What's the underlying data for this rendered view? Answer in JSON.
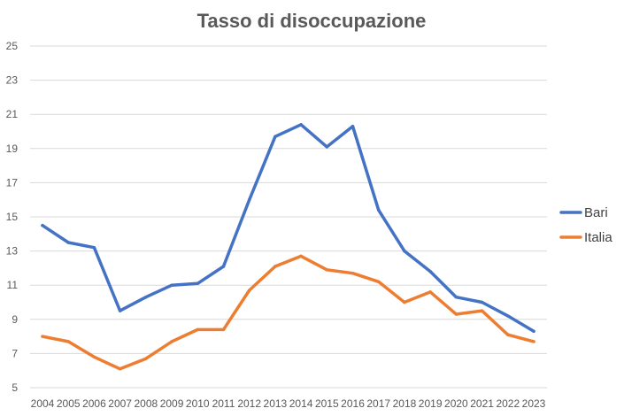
{
  "chart_data": {
    "type": "line",
    "title": "Tasso di disoccupazione",
    "xlabel": "",
    "ylabel": "",
    "categories": [
      "2004",
      "2005",
      "2006",
      "2007",
      "2008",
      "2009",
      "2010",
      "2011",
      "2012",
      "2013",
      "2014",
      "2015",
      "2016",
      "2017",
      "2018",
      "2019",
      "2020",
      "2021",
      "2022",
      "2023"
    ],
    "y_ticks": [
      "5",
      "7",
      "9",
      "11",
      "13",
      "15",
      "17",
      "19",
      "21",
      "23",
      "25"
    ],
    "ylim": [
      5,
      25
    ],
    "grid": true,
    "legend_position": "right",
    "series": [
      {
        "name": "Bari",
        "color": "#4472c4",
        "values": [
          14.5,
          13.5,
          13.2,
          9.5,
          10.3,
          11.0,
          11.1,
          12.1,
          16.0,
          19.7,
          20.4,
          19.1,
          20.3,
          15.4,
          13.0,
          11.8,
          10.3,
          10.0,
          9.2,
          8.3
        ]
      },
      {
        "name": "Italia",
        "color": "#ed7d31",
        "values": [
          8.0,
          7.7,
          6.8,
          6.1,
          6.7,
          7.7,
          8.4,
          8.4,
          10.7,
          12.1,
          12.7,
          11.9,
          11.7,
          11.2,
          10.0,
          10.6,
          9.3,
          9.5,
          8.1,
          7.7
        ]
      }
    ]
  }
}
